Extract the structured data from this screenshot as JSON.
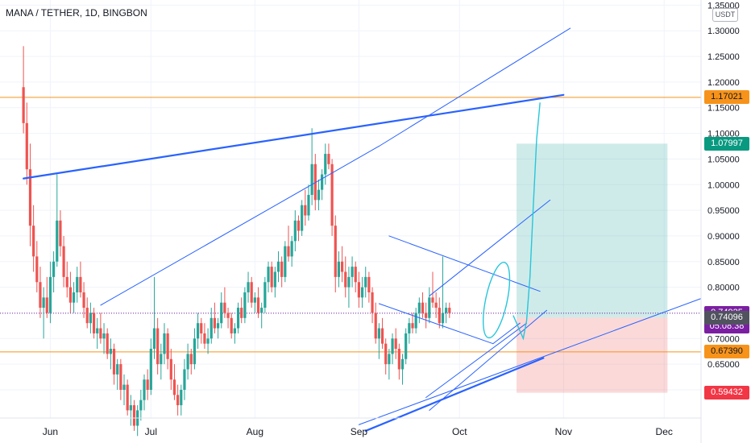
{
  "header": {
    "title": "MANA / TETHER, 1D, BINGBON"
  },
  "axis": {
    "unit_badge": "USDT"
  },
  "colors": {
    "up": "#26a69a",
    "down": "#ef5350",
    "trend_blue": "#2962ff",
    "orange": "#f7931a",
    "green_tag": "#089981",
    "purple": "#7b1fa2",
    "dark_tag": "#50535e",
    "red_tag": "#f23645",
    "cyan": "#26c6da"
  },
  "chart_data": {
    "type": "candlestick",
    "symbol": "MANA / TETHER",
    "interval": "1D",
    "exchange": "BINGBON",
    "ylim": [
      0.545,
      1.36
    ],
    "y_ticks": [
      "1.35000",
      "1.30000",
      "1.25000",
      "1.20000",
      "1.15000",
      "1.10000",
      "1.05000",
      "1.00000",
      "0.95000",
      "0.90000",
      "0.85000",
      "0.80000",
      "0.75000",
      "0.70000",
      "0.65000",
      "0.60000"
    ],
    "x_ticks": [
      "Jun",
      "Jul",
      "Aug",
      "Sep",
      "Oct",
      "Nov",
      "Dec"
    ],
    "x_tick_index": [
      8,
      38,
      69,
      100,
      130,
      161,
      191
    ],
    "x_domain": [
      -7,
      202
    ],
    "price_tags": [
      {
        "label": "1.17021",
        "value": 1.17021,
        "color": "orange",
        "dark_text": true
      },
      {
        "label": "1.07997",
        "value": 1.07997,
        "color": "green_tag"
      },
      {
        "label": "0.74925",
        "value": 0.74925,
        "color": "purple"
      },
      {
        "label": "05:08:38",
        "value": 0.7225,
        "color": "purple"
      },
      {
        "label": "0.74096",
        "value": 0.74096,
        "color": "dark_tag"
      },
      {
        "label": "0.67390",
        "value": 0.6739,
        "color": "orange",
        "dark_text": true
      },
      {
        "label": "0.59432",
        "value": 0.59432,
        "color": "red_tag"
      }
    ],
    "horizontal_lines": [
      {
        "value": 1.17021,
        "color": "orange"
      },
      {
        "value": 0.6739,
        "color": "orange"
      },
      {
        "value": 0.74925,
        "color": "purple",
        "dashed": true
      }
    ],
    "position": {
      "x_start": 147,
      "x_end": 192,
      "entry": 0.74096,
      "target": 1.07997,
      "stop": 0.59432
    },
    "trendlines": [
      {
        "p1": [
          0,
          1.012
        ],
        "p2": [
          161,
          1.175
        ],
        "width": 2.2
      },
      {
        "p1": [
          102,
          0.52
        ],
        "p2": [
          155,
          0.662
        ],
        "width": 2.2
      },
      {
        "p1": [
          23,
          0.765
        ],
        "p2": [
          106,
          1.075
        ],
        "width": 1
      },
      {
        "p1": [
          106,
          1.075
        ],
        "p2": [
          163,
          1.305
        ],
        "width": 1
      },
      {
        "p1": [
          109,
          0.9
        ],
        "p2": [
          154,
          0.792
        ],
        "width": 1
      },
      {
        "p1": [
          106,
          0.768
        ],
        "p2": [
          140,
          0.69
        ],
        "width": 1
      },
      {
        "p1": [
          140,
          0.69
        ],
        "p2": [
          148,
          0.73
        ],
        "width": 1
      },
      {
        "p1": [
          121,
          0.56
        ],
        "p2": [
          156,
          0.755
        ],
        "width": 1
      },
      {
        "p1": [
          121,
          0.783
        ],
        "p2": [
          157,
          0.97
        ],
        "width": 1
      },
      {
        "p1": [
          100,
          0.532
        ],
        "p2": [
          202,
          0.778
        ],
        "width": 1
      },
      {
        "p1": [
          120,
          0.585
        ],
        "p2": [
          150,
          0.73
        ],
        "width": 1
      }
    ],
    "forecast_path": [
      [
        146,
        0.745
      ],
      [
        148,
        0.715
      ],
      [
        149,
        0.7
      ],
      [
        150,
        0.735
      ],
      [
        151,
        0.82
      ],
      [
        152,
        0.96
      ],
      [
        153,
        1.09
      ],
      [
        154,
        1.16
      ]
    ],
    "ellipse": {
      "cx": 141,
      "cy": 0.775,
      "rx": 3.2,
      "ry": 0.075
    },
    "candles": [
      [
        1.19,
        1.27,
        1.1,
        1.12
      ],
      [
        1.12,
        1.16,
        1.0,
        1.03
      ],
      [
        1.03,
        1.08,
        0.88,
        0.92
      ],
      [
        0.92,
        0.96,
        0.83,
        0.86
      ],
      [
        0.86,
        0.89,
        0.79,
        0.81
      ],
      [
        0.81,
        0.84,
        0.74,
        0.76
      ],
      [
        0.76,
        0.8,
        0.7,
        0.78
      ],
      [
        0.78,
        0.82,
        0.74,
        0.75
      ],
      [
        0.75,
        0.85,
        0.73,
        0.82
      ],
      [
        0.82,
        0.87,
        0.79,
        0.85
      ],
      [
        0.85,
        1.02,
        0.84,
        0.93
      ],
      [
        0.93,
        0.95,
        0.86,
        0.88
      ],
      [
        0.88,
        0.9,
        0.8,
        0.82
      ],
      [
        0.82,
        0.85,
        0.78,
        0.8
      ],
      [
        0.8,
        0.83,
        0.75,
        0.77
      ],
      [
        0.77,
        0.81,
        0.75,
        0.79
      ],
      [
        0.79,
        0.84,
        0.77,
        0.82
      ],
      [
        0.82,
        0.85,
        0.78,
        0.79
      ],
      [
        0.79,
        0.81,
        0.74,
        0.76
      ],
      [
        0.76,
        0.78,
        0.72,
        0.73
      ],
      [
        0.73,
        0.77,
        0.71,
        0.75
      ],
      [
        0.75,
        0.76,
        0.7,
        0.71
      ],
      [
        0.71,
        0.74,
        0.68,
        0.72
      ],
      [
        0.72,
        0.75,
        0.69,
        0.7
      ],
      [
        0.7,
        0.73,
        0.67,
        0.71
      ],
      [
        0.71,
        0.72,
        0.66,
        0.67
      ],
      [
        0.67,
        0.7,
        0.64,
        0.68
      ],
      [
        0.68,
        0.69,
        0.61,
        0.63
      ],
      [
        0.63,
        0.66,
        0.6,
        0.65
      ],
      [
        0.65,
        0.66,
        0.58,
        0.6
      ],
      [
        0.6,
        0.63,
        0.57,
        0.61
      ],
      [
        0.61,
        0.62,
        0.55,
        0.56
      ],
      [
        0.56,
        0.59,
        0.53,
        0.57
      ],
      [
        0.57,
        0.58,
        0.52,
        0.53
      ],
      [
        0.53,
        0.57,
        0.51,
        0.56
      ],
      [
        0.56,
        0.6,
        0.54,
        0.58
      ],
      [
        0.58,
        0.63,
        0.56,
        0.62
      ],
      [
        0.62,
        0.64,
        0.58,
        0.6
      ],
      [
        0.6,
        0.7,
        0.59,
        0.68
      ],
      [
        0.68,
        0.82,
        0.66,
        0.72
      ],
      [
        0.72,
        0.74,
        0.63,
        0.65
      ],
      [
        0.65,
        0.69,
        0.62,
        0.67
      ],
      [
        0.67,
        0.73,
        0.65,
        0.71
      ],
      [
        0.71,
        0.72,
        0.64,
        0.66
      ],
      [
        0.66,
        0.68,
        0.6,
        0.62
      ],
      [
        0.62,
        0.65,
        0.58,
        0.59
      ],
      [
        0.59,
        0.61,
        0.55,
        0.57
      ],
      [
        0.57,
        0.61,
        0.55,
        0.6
      ],
      [
        0.6,
        0.66,
        0.58,
        0.64
      ],
      [
        0.64,
        0.69,
        0.62,
        0.67
      ],
      [
        0.67,
        0.68,
        0.63,
        0.65
      ],
      [
        0.65,
        0.72,
        0.64,
        0.7
      ],
      [
        0.7,
        0.75,
        0.68,
        0.73
      ],
      [
        0.73,
        0.74,
        0.69,
        0.71
      ],
      [
        0.71,
        0.73,
        0.68,
        0.69
      ],
      [
        0.69,
        0.72,
        0.67,
        0.7
      ],
      [
        0.7,
        0.76,
        0.69,
        0.74
      ],
      [
        0.74,
        0.77,
        0.71,
        0.72
      ],
      [
        0.72,
        0.74,
        0.7,
        0.73
      ],
      [
        0.73,
        0.79,
        0.72,
        0.77
      ],
      [
        0.77,
        0.8,
        0.74,
        0.75
      ],
      [
        0.75,
        0.76,
        0.72,
        0.74
      ],
      [
        0.74,
        0.75,
        0.7,
        0.71
      ],
      [
        0.71,
        0.73,
        0.69,
        0.72
      ],
      [
        0.72,
        0.77,
        0.71,
        0.76
      ],
      [
        0.76,
        0.78,
        0.73,
        0.74
      ],
      [
        0.74,
        0.8,
        0.73,
        0.79
      ],
      [
        0.79,
        0.83,
        0.77,
        0.81
      ],
      [
        0.81,
        0.82,
        0.76,
        0.77
      ],
      [
        0.77,
        0.79,
        0.75,
        0.78
      ],
      [
        0.78,
        0.8,
        0.74,
        0.75
      ],
      [
        0.75,
        0.77,
        0.72,
        0.76
      ],
      [
        0.76,
        0.82,
        0.75,
        0.81
      ],
      [
        0.81,
        0.85,
        0.79,
        0.84
      ],
      [
        0.84,
        0.85,
        0.79,
        0.8
      ],
      [
        0.8,
        0.84,
        0.78,
        0.83
      ],
      [
        0.83,
        0.87,
        0.81,
        0.85
      ],
      [
        0.85,
        0.86,
        0.8,
        0.82
      ],
      [
        0.82,
        0.89,
        0.81,
        0.88
      ],
      [
        0.88,
        0.92,
        0.85,
        0.86
      ],
      [
        0.86,
        0.9,
        0.84,
        0.89
      ],
      [
        0.89,
        0.95,
        0.87,
        0.93
      ],
      [
        0.93,
        0.94,
        0.89,
        0.91
      ],
      [
        0.91,
        0.97,
        0.9,
        0.96
      ],
      [
        0.96,
        0.99,
        0.92,
        0.94
      ],
      [
        0.94,
        1.0,
        0.93,
        0.98
      ],
      [
        0.98,
        1.11,
        0.96,
        1.04
      ],
      [
        1.04,
        1.06,
        0.95,
        0.97
      ],
      [
        0.97,
        1.01,
        0.95,
        0.99
      ],
      [
        0.99,
        1.03,
        0.97,
        1.02
      ],
      [
        1.02,
        1.08,
        1.0,
        1.06
      ],
      [
        1.06,
        1.08,
        1.03,
        1.04
      ],
      [
        1.04,
        1.05,
        0.9,
        0.92
      ],
      [
        0.92,
        0.94,
        0.79,
        0.82
      ],
      [
        0.82,
        0.87,
        0.8,
        0.85
      ],
      [
        0.85,
        0.88,
        0.81,
        0.83
      ],
      [
        0.83,
        0.86,
        0.78,
        0.8
      ],
      [
        0.8,
        0.84,
        0.76,
        0.82
      ],
      [
        0.82,
        0.86,
        0.8,
        0.84
      ],
      [
        0.84,
        0.85,
        0.79,
        0.81
      ],
      [
        0.81,
        0.83,
        0.76,
        0.78
      ],
      [
        0.78,
        0.82,
        0.76,
        0.8
      ],
      [
        0.8,
        0.84,
        0.78,
        0.82
      ],
      [
        0.82,
        0.83,
        0.77,
        0.79
      ],
      [
        0.79,
        0.8,
        0.73,
        0.75
      ],
      [
        0.75,
        0.77,
        0.69,
        0.7
      ],
      [
        0.7,
        0.73,
        0.66,
        0.72
      ],
      [
        0.72,
        0.74,
        0.68,
        0.69
      ],
      [
        0.69,
        0.7,
        0.63,
        0.65
      ],
      [
        0.65,
        0.68,
        0.62,
        0.67
      ],
      [
        0.67,
        0.71,
        0.65,
        0.7
      ],
      [
        0.7,
        0.72,
        0.66,
        0.68
      ],
      [
        0.68,
        0.69,
        0.62,
        0.64
      ],
      [
        0.64,
        0.67,
        0.61,
        0.66
      ],
      [
        0.66,
        0.72,
        0.65,
        0.71
      ],
      [
        0.71,
        0.74,
        0.69,
        0.73
      ],
      [
        0.73,
        0.75,
        0.71,
        0.72
      ],
      [
        0.72,
        0.76,
        0.71,
        0.75
      ],
      [
        0.75,
        0.78,
        0.73,
        0.77
      ],
      [
        0.77,
        0.79,
        0.74,
        0.75
      ],
      [
        0.75,
        0.77,
        0.72,
        0.74
      ],
      [
        0.74,
        0.8,
        0.73,
        0.78
      ],
      [
        0.78,
        0.83,
        0.76,
        0.77
      ],
      [
        0.77,
        0.79,
        0.74,
        0.76
      ],
      [
        0.76,
        0.78,
        0.72,
        0.73
      ],
      [
        0.73,
        0.86,
        0.72,
        0.75
      ],
      [
        0.75,
        0.77,
        0.73,
        0.76
      ],
      [
        0.76,
        0.77,
        0.74,
        0.75
      ]
    ]
  }
}
